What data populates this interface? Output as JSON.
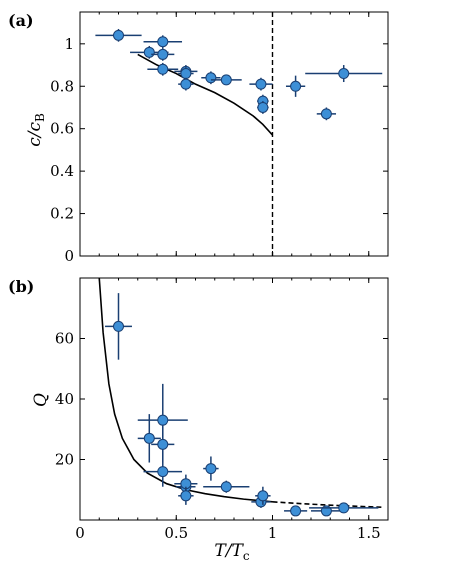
{
  "chart_data": [
    {
      "panel": "(a)",
      "type": "scatter",
      "ylabel": "c/c",
      "ylabel_sub": "B",
      "xlim": [
        0,
        1.6
      ],
      "ylim": [
        0,
        1.15
      ],
      "xticks": [
        0,
        0.5,
        1,
        1.5
      ],
      "xtick_labels_shown": false,
      "yticks": [
        0,
        0.2,
        0.4,
        0.6,
        0.8,
        1.0
      ],
      "ytick_labels": [
        "0",
        "0.2",
        "0.4",
        "0.6",
        "0.8",
        "1"
      ],
      "marker_color": "#3d8fd6",
      "errorbar_color": "#1a3f72",
      "points": [
        {
          "x": 0.2,
          "y": 1.04,
          "xerr": 0.12,
          "yerr": 0.03
        },
        {
          "x": 0.36,
          "y": 0.96,
          "xerr": 0.1,
          "yerr": 0.03
        },
        {
          "x": 0.43,
          "y": 1.01,
          "xerr": 0.1,
          "yerr": 0.03
        },
        {
          "x": 0.43,
          "y": 0.95,
          "xerr": 0.06,
          "yerr": 0.03
        },
        {
          "x": 0.43,
          "y": 0.88,
          "xerr": 0.08,
          "yerr": 0.03
        },
        {
          "x": 0.55,
          "y": 0.87,
          "xerr": 0.06,
          "yerr": 0.03
        },
        {
          "x": 0.55,
          "y": 0.86,
          "xerr": 0.04,
          "yerr": 0.03
        },
        {
          "x": 0.55,
          "y": 0.81,
          "xerr": 0.04,
          "yerr": 0.03
        },
        {
          "x": 0.68,
          "y": 0.84,
          "xerr": 0.05,
          "yerr": 0.03
        },
        {
          "x": 0.76,
          "y": 0.83,
          "xerr": 0.08,
          "yerr": 0.02
        },
        {
          "x": 0.94,
          "y": 0.81,
          "xerr": 0.06,
          "yerr": 0.03
        },
        {
          "x": 0.95,
          "y": 0.73,
          "xerr": 0.03,
          "yerr": 0.03
        },
        {
          "x": 0.95,
          "y": 0.7,
          "xerr": 0.03,
          "yerr": 0.03
        },
        {
          "x": 1.12,
          "y": 0.8,
          "xerr": 0.05,
          "yerr": 0.05
        },
        {
          "x": 1.28,
          "y": 0.67,
          "xerr": 0.05,
          "yerr": 0.03
        },
        {
          "x": 1.37,
          "y": 0.86,
          "xerr": 0.2,
          "yerr": 0.04
        }
      ],
      "curve": {
        "x": [
          0.3,
          0.4,
          0.5,
          0.6,
          0.7,
          0.8,
          0.9,
          0.95,
          1.0
        ],
        "y": [
          0.95,
          0.9,
          0.86,
          0.81,
          0.77,
          0.72,
          0.66,
          0.62,
          0.57
        ]
      },
      "vline_dashed_x": 1.0
    },
    {
      "panel": "(b)",
      "type": "scatter",
      "xlabel": "T/T",
      "xlabel_sub": "c",
      "ylabel": "Q",
      "xlim": [
        0,
        1.6
      ],
      "ylim": [
        0,
        80
      ],
      "xticks": [
        0,
        0.5,
        1,
        1.5
      ],
      "xtick_labels": [
        "0",
        "0.5",
        "1",
        "1.5"
      ],
      "yticks": [
        20,
        40,
        60
      ],
      "ytick_labels": [
        "20",
        "40",
        "60"
      ],
      "marker_color": "#3d8fd6",
      "errorbar_color": "#1a3f72",
      "points": [
        {
          "x": 0.2,
          "y": 64,
          "xerr": 0.07,
          "yerr": 11
        },
        {
          "x": 0.36,
          "y": 27,
          "xerr": 0.06,
          "yerr": 8
        },
        {
          "x": 0.43,
          "y": 33,
          "xerr": 0.13,
          "yerr": 12
        },
        {
          "x": 0.43,
          "y": 25,
          "xerr": 0.06,
          "yerr": 6
        },
        {
          "x": 0.43,
          "y": 16,
          "xerr": 0.1,
          "yerr": 5
        },
        {
          "x": 0.55,
          "y": 11,
          "xerr": 0.05,
          "yerr": 2
        },
        {
          "x": 0.55,
          "y": 12,
          "xerr": 0.06,
          "yerr": 3
        },
        {
          "x": 0.55,
          "y": 8,
          "xerr": 0.04,
          "yerr": 3
        },
        {
          "x": 0.68,
          "y": 17,
          "xerr": 0.04,
          "yerr": 4
        },
        {
          "x": 0.76,
          "y": 11,
          "xerr": 0.12,
          "yerr": 2
        },
        {
          "x": 0.94,
          "y": 6,
          "xerr": 0.05,
          "yerr": 2
        },
        {
          "x": 0.95,
          "y": 8,
          "xerr": 0.04,
          "yerr": 3
        },
        {
          "x": 1.12,
          "y": 3,
          "xerr": 0.06,
          "yerr": 1
        },
        {
          "x": 1.28,
          "y": 3,
          "xerr": 0.08,
          "yerr": 1
        },
        {
          "x": 1.37,
          "y": 4,
          "xerr": 0.18,
          "yerr": 1
        }
      ],
      "curve_solid": {
        "x": [
          0.1,
          0.12,
          0.15,
          0.18,
          0.22,
          0.28,
          0.35,
          0.45,
          0.55,
          0.65,
          0.75,
          0.85,
          0.95,
          1.0
        ],
        "y": [
          80,
          62,
          45,
          35,
          27,
          20,
          15.5,
          12,
          10,
          8.7,
          7.7,
          6.9,
          6.3,
          6.0
        ]
      },
      "curve_dashed": {
        "x": [
          1.0,
          1.15,
          1.3,
          1.45,
          1.58
        ],
        "y": [
          6.0,
          5.4,
          4.9,
          4.5,
          4.2
        ]
      }
    }
  ]
}
